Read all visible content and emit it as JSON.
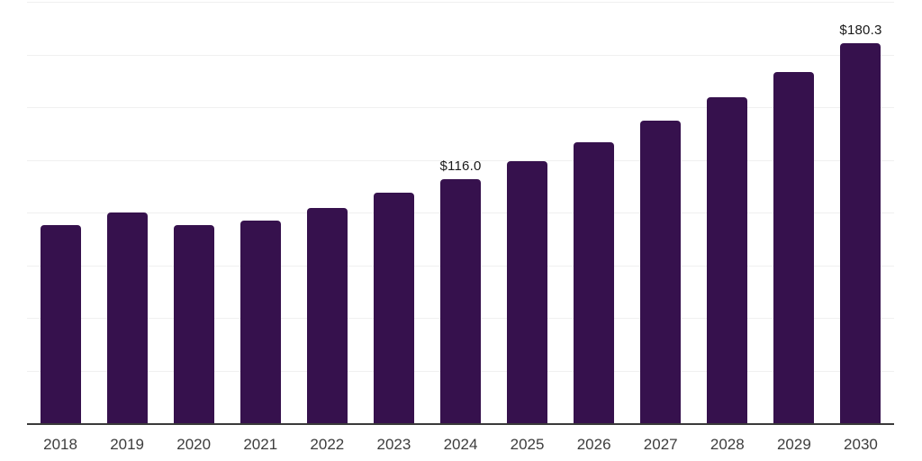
{
  "chart_data": {
    "type": "bar",
    "title": "",
    "xlabel": "",
    "ylabel": "",
    "categories": [
      "2018",
      "2019",
      "2020",
      "2021",
      "2022",
      "2023",
      "2024",
      "2025",
      "2026",
      "2027",
      "2028",
      "2029",
      "2030"
    ],
    "values": [
      94.0,
      100.0,
      94.1,
      96.2,
      102.0,
      109.6,
      116.0,
      124.5,
      133.4,
      143.6,
      154.8,
      166.8,
      180.3
    ],
    "data_labels": {
      "2024": "$116.0",
      "2030": "$180.3"
    },
    "ylim": [
      0,
      200
    ],
    "gridline_step": 25,
    "grid": true,
    "legend": false,
    "colors": {
      "bar": "#36114D",
      "gridline": "#f0f0f0",
      "axis_line": "#3a3a3a",
      "x_axis_label": "#3d3d3d",
      "data_label": "#1a1a1a",
      "background": "#ffffff"
    }
  }
}
